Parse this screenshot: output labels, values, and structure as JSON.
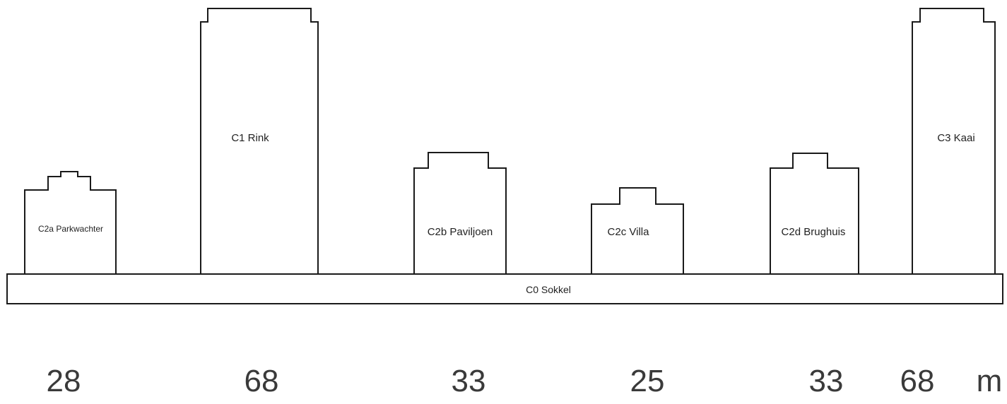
{
  "base": {
    "label": "C0 Sokkel"
  },
  "buildings": [
    {
      "id": "c2a",
      "label": "C2a Parkwachter",
      "height": "28"
    },
    {
      "id": "c1",
      "label": "C1 Rink",
      "height": "68"
    },
    {
      "id": "c2b",
      "label": "C2b Paviljoen",
      "height": "33"
    },
    {
      "id": "c2c",
      "label": "C2c Villa",
      "height": "25"
    },
    {
      "id": "c2d",
      "label": "C2d Brughuis",
      "height": "33"
    },
    {
      "id": "c3",
      "label": "C3 Kaai",
      "height": "68"
    }
  ],
  "unit": "m"
}
